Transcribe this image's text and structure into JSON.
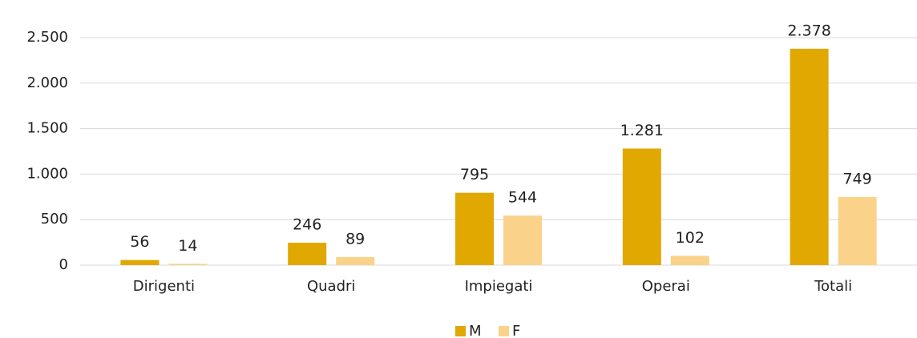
{
  "chart_data": {
    "type": "bar",
    "categories": [
      "Dirigenti",
      "Quadri",
      "Impiegati",
      "Operai",
      "Totali"
    ],
    "series": [
      {
        "name": "M",
        "color": "#e0a800",
        "values": [
          56,
          246,
          795,
          1281,
          2378
        ],
        "value_labels": [
          "56",
          "246",
          "795",
          "1.281",
          "2.378"
        ]
      },
      {
        "name": "F",
        "color": "#fbd28a",
        "values": [
          14,
          89,
          544,
          102,
          749
        ],
        "value_labels": [
          "14",
          "89",
          "544",
          "102",
          "749"
        ]
      }
    ],
    "ylim": [
      0,
      2500
    ],
    "yticks": [
      0,
      500,
      {
        "value": 1000,
        "label": "1.000"
      },
      {
        "value": 1500,
        "label": "1.500"
      },
      {
        "value": 2000,
        "label": "2.000"
      },
      {
        "value": 2500,
        "label": "2.500"
      }
    ],
    "grid": true,
    "legend": "bottom"
  }
}
